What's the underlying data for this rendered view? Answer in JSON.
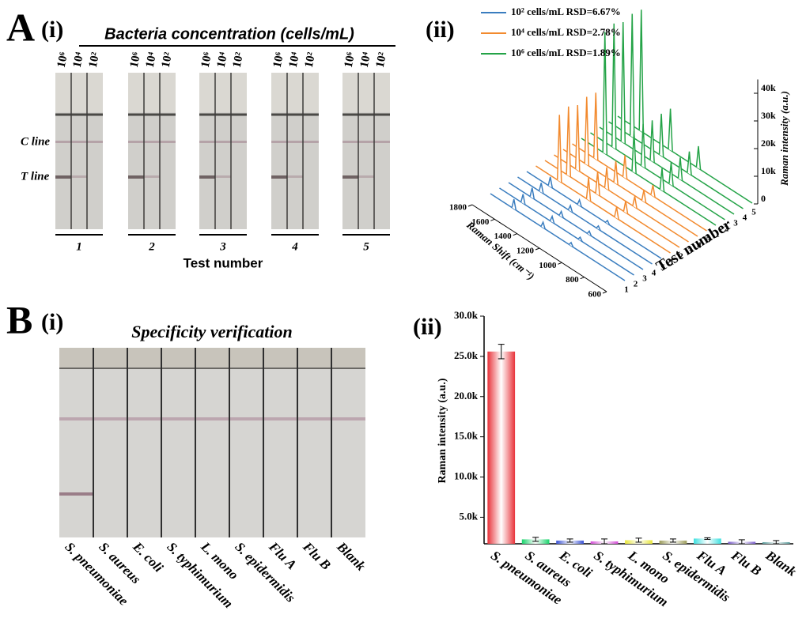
{
  "panels": {
    "A": "A",
    "A_i": "(i)",
    "A_ii": "(ii)",
    "B": "B",
    "B_i": "(i)",
    "B_ii": "(ii)"
  },
  "strips_a": {
    "title": "Bacteria concentration (cells/mL)",
    "concentrations": [
      "10⁶",
      "10⁴",
      "10²"
    ],
    "c_line": "C line",
    "t_line": "T line",
    "tests": [
      "1",
      "2",
      "3",
      "4",
      "5"
    ],
    "xlabel": "Test number"
  },
  "strips_b": {
    "title": "Specificity verification"
  },
  "chart_data": [
    {
      "type": "waterfall",
      "xlabel": "Raman Shift (cm⁻¹)",
      "ylabel": "Raman intensity (a.u.)",
      "zlabel": "Test number",
      "xlim": [
        600,
        1800
      ],
      "xticks": [
        600,
        800,
        1000,
        1200,
        1400,
        1600,
        1800
      ],
      "ylim": [
        0,
        45000
      ],
      "yticks": [
        0,
        {
          "value": 10000,
          "label": "10k"
        },
        {
          "value": 20000,
          "label": "20k"
        },
        {
          "value": 30000,
          "label": "30k"
        },
        {
          "value": 40000,
          "label": "40k"
        }
      ],
      "tests": [
        "1",
        "2",
        "3",
        "4",
        "5"
      ],
      "x": [
        1080,
        1330,
        1590
      ],
      "series": [
        {
          "name": "10² cells/mL RSD=6.67%",
          "color": "#3a7dbf",
          "values": [
            [
              1200,
              2000,
              3500
            ],
            [
              1100,
              2100,
              3300
            ],
            [
              1300,
              1900,
              3600
            ],
            [
              1200,
              2000,
              3400
            ],
            [
              1150,
              2050,
              3550
            ]
          ]
        },
        {
          "name": "10⁴ cells/mL RSD=2.78%",
          "color": "#f28a2e",
          "values": [
            [
              4000,
              8000,
              24000
            ],
            [
              4200,
              8300,
              25000
            ],
            [
              3900,
              7800,
              23500
            ],
            [
              4100,
              8100,
              24500
            ],
            [
              4000,
              8200,
              24000
            ]
          ]
        },
        {
          "name": "10⁶ cells/mL RSD=1.89%",
          "color": "#24a347",
          "values": [
            [
              8000,
              15000,
              44000
            ],
            [
              8200,
              15500,
              45000
            ],
            [
              7900,
              14800,
              43500
            ],
            [
              8100,
              15200,
              44500
            ],
            [
              8000,
              15000,
              44000
            ]
          ]
        }
      ]
    },
    {
      "type": "bar",
      "ylabel": "Raman intensity (a.u.)",
      "categories": [
        "S. pneumoniae",
        "S. aureus",
        "E. coli",
        "S. typhimurium",
        "L. mono",
        "S. epidermidis",
        "Flu A",
        "Flu B",
        "Blank"
      ],
      "values": [
        25600,
        2250,
        2100,
        2000,
        2150,
        2100,
        2350,
        1950,
        1900
      ],
      "errors": [
        900,
        250,
        200,
        300,
        250,
        200,
        100,
        250,
        200
      ],
      "colors": [
        "#e8333a",
        "#19d36b",
        "#3b53d6",
        "#d44bd6",
        "#e8e63a",
        "#9c9c5a",
        "#3ee0e0",
        "#7a5ccc",
        "#5a9c9c"
      ],
      "ylim": [
        1700,
        30000
      ],
      "yticks": [
        {
          "value": 5000,
          "label": "5.0k"
        },
        {
          "value": 10000,
          "label": "10.0k"
        },
        {
          "value": 15000,
          "label": "15.0k"
        },
        {
          "value": 20000,
          "label": "20.0k"
        },
        {
          "value": 25000,
          "label": "25.0k"
        },
        {
          "value": 30000,
          "label": "30.0k"
        }
      ]
    }
  ]
}
